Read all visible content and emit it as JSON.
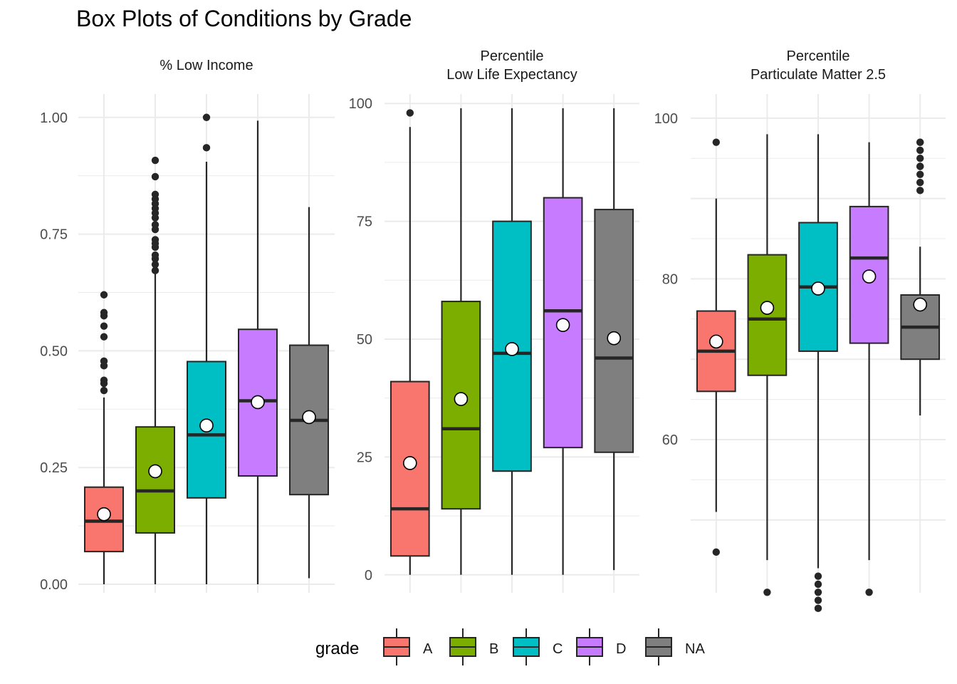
{
  "title": "Box Plots of Conditions by Grade",
  "legend": {
    "title": "grade",
    "position": "bottom",
    "entries": [
      {
        "label": "A",
        "color": "#F8766D"
      },
      {
        "label": "B",
        "color": "#7CAE00"
      },
      {
        "label": "C",
        "color": "#00BFC4"
      },
      {
        "label": "D",
        "color": "#C77CFF"
      },
      {
        "label": "NA",
        "color": "#7F7F7F"
      }
    ]
  },
  "chart_data": [
    {
      "type": "box",
      "strip_lines": [
        "% Low Income"
      ],
      "categories": [
        "A",
        "B",
        "C",
        "D",
        "NA"
      ],
      "ylim": [
        0,
        1.05
      ],
      "yticks": [
        0,
        0.25,
        0.5,
        0.75,
        1.0
      ],
      "ytick_labels": [
        "0.00",
        "0.25",
        "0.50",
        "0.75",
        "1.00"
      ],
      "grid": true,
      "boxes": [
        {
          "grade": "A",
          "min": 0.0,
          "q1": 0.07,
          "median": 0.135,
          "q3": 0.208,
          "max": 0.4,
          "mean": 0.15,
          "outliers": [
            0.415,
            0.43,
            0.437,
            0.468,
            0.478,
            0.53,
            0.553,
            0.575,
            0.582,
            0.62
          ]
        },
        {
          "grade": "B",
          "min": 0.0,
          "q1": 0.11,
          "median": 0.2,
          "q3": 0.337,
          "max": 0.665,
          "mean": 0.242,
          "outliers": [
            0.672,
            0.685,
            0.697,
            0.705,
            0.722,
            0.73,
            0.738,
            0.76,
            0.77,
            0.785,
            0.795,
            0.805,
            0.815,
            0.825,
            0.835,
            0.873,
            0.908
          ]
        },
        {
          "grade": "C",
          "min": 0.0,
          "q1": 0.185,
          "median": 0.32,
          "q3": 0.477,
          "max": 0.905,
          "mean": 0.34,
          "outliers": [
            0.935,
            1.0
          ]
        },
        {
          "grade": "D",
          "min": 0.0,
          "q1": 0.232,
          "median": 0.393,
          "q3": 0.546,
          "max": 0.993,
          "mean": 0.39,
          "outliers": []
        },
        {
          "grade": "NA",
          "min": 0.013,
          "q1": 0.192,
          "median": 0.351,
          "q3": 0.512,
          "max": 0.808,
          "mean": 0.358,
          "outliers": []
        }
      ]
    },
    {
      "type": "box",
      "strip_lines": [
        "Percentile",
        "Low Life Expectancy"
      ],
      "categories": [
        "A",
        "B",
        "C",
        "D",
        "NA"
      ],
      "ylim": [
        -2,
        102
      ],
      "yticks": [
        0,
        25,
        50,
        75,
        100
      ],
      "ytick_labels": [
        "0",
        "25",
        "50",
        "75",
        "100"
      ],
      "grid": true,
      "boxes": [
        {
          "grade": "A",
          "min": 0,
          "q1": 4,
          "median": 14,
          "q3": 41,
          "max": 95,
          "mean": 23.7,
          "outliers": [
            98
          ]
        },
        {
          "grade": "B",
          "min": 0,
          "q1": 14,
          "median": 31,
          "q3": 58,
          "max": 99,
          "mean": 37.3,
          "outliers": []
        },
        {
          "grade": "C",
          "min": 0,
          "q1": 22,
          "median": 47,
          "q3": 75,
          "max": 99,
          "mean": 47.9,
          "outliers": []
        },
        {
          "grade": "D",
          "min": 0,
          "q1": 27,
          "median": 56,
          "q3": 80,
          "max": 99,
          "mean": 53,
          "outliers": []
        },
        {
          "grade": "NA",
          "min": 1,
          "q1": 26,
          "median": 46,
          "q3": 77.5,
          "max": 99,
          "mean": 50.2,
          "outliers": []
        }
      ]
    },
    {
      "type": "box",
      "strip_lines": [
        "Percentile",
        "Particulate Matter 2.5"
      ],
      "categories": [
        "A",
        "B",
        "C",
        "D",
        "NA"
      ],
      "ylim": [
        42,
        103
      ],
      "yticks": [
        50,
        60,
        70,
        80,
        90,
        100
      ],
      "ytick_labels": [
        "",
        "60",
        "",
        "80",
        "",
        "100"
      ],
      "grid": true,
      "boxes": [
        {
          "grade": "A",
          "min": 51,
          "q1": 66,
          "median": 71,
          "q3": 76,
          "max": 90,
          "mean": 72.2,
          "outliers": [
            46,
            97
          ]
        },
        {
          "grade": "B",
          "min": 45,
          "q1": 68,
          "median": 75,
          "q3": 83,
          "max": 98,
          "mean": 76.4,
          "outliers": [
            41
          ]
        },
        {
          "grade": "C",
          "min": 44,
          "q1": 71,
          "median": 79,
          "q3": 87,
          "max": 98,
          "mean": 78.8,
          "outliers": [
            39,
            40,
            41,
            42,
            43
          ]
        },
        {
          "grade": "D",
          "min": 45,
          "q1": 72,
          "median": 82.6,
          "q3": 89,
          "max": 97,
          "mean": 80.3,
          "outliers": [
            41
          ]
        },
        {
          "grade": "NA",
          "min": 63,
          "q1": 70,
          "median": 74,
          "q3": 78,
          "max": 84,
          "mean": 76.8,
          "outliers": [
            91,
            92,
            93,
            94,
            94,
            95,
            96,
            97,
            97
          ]
        }
      ]
    }
  ]
}
